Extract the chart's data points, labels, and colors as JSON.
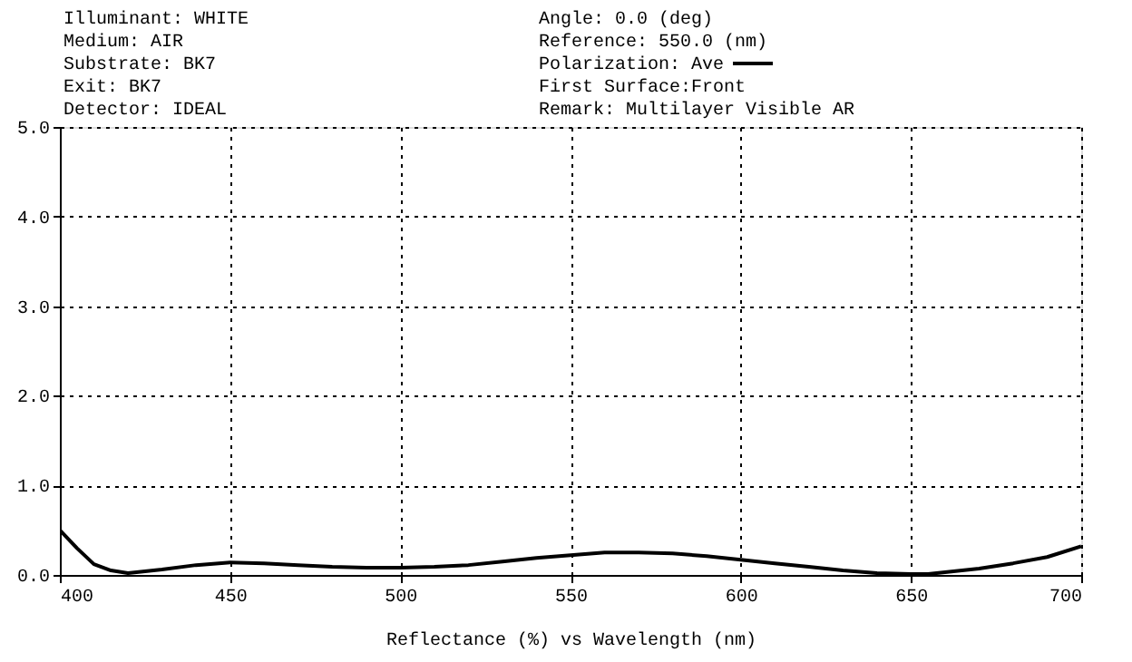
{
  "chart_data": {
    "type": "line",
    "xlabel": "Reflectance (%)   vs   Wavelength (nm)",
    "legend_title": "Polarization:",
    "legend": "top",
    "annotations": [
      "Illuminant: WHITE",
      "Medium: AIR",
      "Substrate: BK7",
      "Exit: BK7",
      "Detector: IDEAL",
      "Angle: 0.0 (deg)",
      "Reference: 550.0 (nm)",
      "First Surface:Front",
      "Remark: Multilayer Visible AR"
    ],
    "x": [
      400,
      405,
      410,
      415,
      420,
      430,
      440,
      450,
      460,
      470,
      480,
      490,
      500,
      510,
      520,
      530,
      540,
      550,
      560,
      570,
      580,
      590,
      600,
      610,
      620,
      630,
      640,
      650,
      655,
      660,
      670,
      680,
      690,
      700
    ],
    "series": [
      {
        "name": "Ave",
        "color": "#000000",
        "values": [
          0.5,
          0.3,
          0.12,
          0.05,
          0.02,
          0.06,
          0.11,
          0.14,
          0.13,
          0.11,
          0.09,
          0.08,
          0.08,
          0.09,
          0.11,
          0.15,
          0.19,
          0.22,
          0.25,
          0.25,
          0.24,
          0.21,
          0.17,
          0.13,
          0.09,
          0.05,
          0.02,
          0.01,
          0.01,
          0.03,
          0.07,
          0.13,
          0.2,
          0.32
        ]
      }
    ],
    "xlim": [
      400,
      700
    ],
    "xticks": [
      400,
      450,
      500,
      550,
      600,
      650,
      700
    ],
    "ylim": [
      0,
      5
    ],
    "yticks": [
      {
        "value": 0,
        "label": "0.0"
      },
      {
        "value": 1,
        "label": "1.0"
      },
      {
        "value": 2,
        "label": "2.0"
      },
      {
        "value": 3,
        "label": "3.0"
      },
      {
        "value": 4,
        "label": "4.0"
      },
      {
        "value": 5,
        "label": "5.0"
      }
    ],
    "grid": true,
    "line_style": "solid",
    "marker": "none"
  }
}
